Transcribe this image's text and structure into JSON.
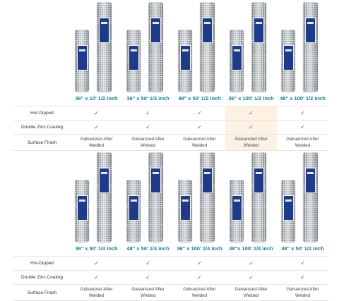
{
  "comparison_blocks": [
    {
      "sizes": [
        "36\" x 10' 1/2 inch",
        "36\" x 50' 1/2 inch",
        "48\" x 50' 1/2 inch",
        "36\" x 100' 1/2 inch",
        "48\" x 100' 1/2 inch"
      ],
      "highlight_col": 3,
      "rows": [
        {
          "label": "Hot-Dipped",
          "cells": [
            "✓",
            "✓",
            "✓",
            "✓",
            "✓"
          ]
        },
        {
          "label": "Double Zinc Coating",
          "cells": [
            "✓",
            "✓",
            "✓",
            "✓",
            "✓"
          ]
        },
        {
          "label": "Surface Finish",
          "cells": [
            "Galvanized After\nWelded",
            "Galvanized After\nWelded",
            "Galvanized After\nWelded",
            "Galvanized After\nWelded",
            "Galvanized After\nWelded"
          ]
        }
      ]
    },
    {
      "sizes": [
        "36\" x 50' 1/4 inch",
        "48\" x 50' 1/4 inch",
        "36\" x 100' 1/4 inch",
        "48\"x 100' 1/4 inch",
        "48\" x 50' 1/2 inch"
      ],
      "highlight_col": null,
      "rows": [
        {
          "label": "Hot-Dipped",
          "cells": [
            "✓",
            "✓",
            "✓",
            "✓",
            "✓"
          ]
        },
        {
          "label": "Double Zinc Coating",
          "cells": [
            "✓",
            "✓",
            "✓",
            "✓",
            "✓"
          ]
        },
        {
          "label": "Surface Finish",
          "cells": [
            "Galvanized After\nWelded",
            "Galvanized After\nWelded",
            "Galvanized After\nWelded",
            "Galvanized After\nWelded",
            "Galvanized After\nWelded"
          ]
        }
      ]
    }
  ]
}
